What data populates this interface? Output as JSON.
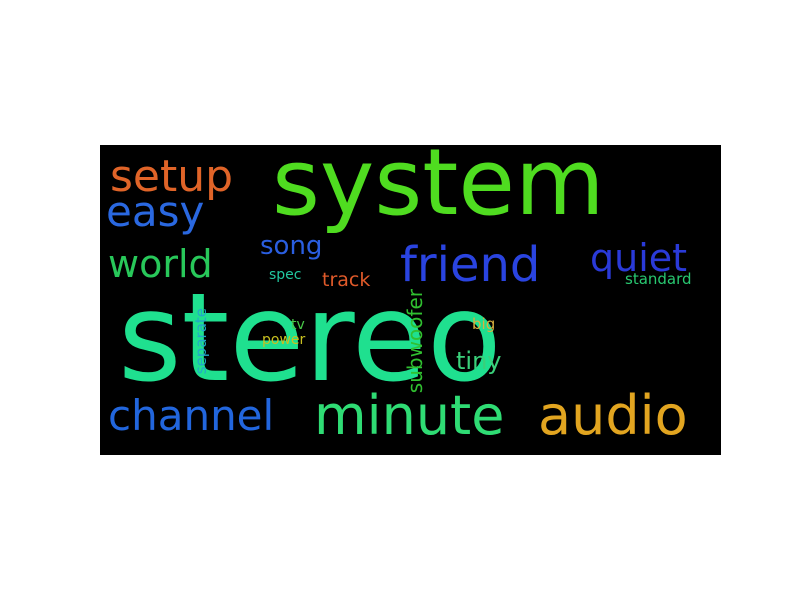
{
  "word_cloud": {
    "background": "#000000",
    "words": [
      {
        "text": "stereo",
        "color": "#1fe08f"
      },
      {
        "text": "system",
        "color": "#4fdc20"
      },
      {
        "text": "minute",
        "color": "#2fdc74"
      },
      {
        "text": "audio",
        "color": "#e2a520"
      },
      {
        "text": "channel",
        "color": "#2266dd"
      },
      {
        "text": "friend",
        "color": "#2a44e0"
      },
      {
        "text": "setup",
        "color": "#e06428"
      },
      {
        "text": "easy",
        "color": "#2a68e0"
      },
      {
        "text": "world",
        "color": "#28c85a"
      },
      {
        "text": "quiet",
        "color": "#2a3ad8"
      },
      {
        "text": "song",
        "color": "#2a5ee0"
      },
      {
        "text": "tiny",
        "color": "#3ad07a"
      },
      {
        "text": "subwoofer",
        "color": "#30c030"
      },
      {
        "text": "separate",
        "color": "#22a8c8"
      },
      {
        "text": "track",
        "color": "#e05a2a"
      },
      {
        "text": "standard",
        "color": "#28c870"
      },
      {
        "text": "spec",
        "color": "#22c8a0"
      },
      {
        "text": "big",
        "color": "#d8b040"
      },
      {
        "text": "tv",
        "color": "#48c848"
      },
      {
        "text": "power",
        "color": "#c8c020"
      }
    ]
  }
}
